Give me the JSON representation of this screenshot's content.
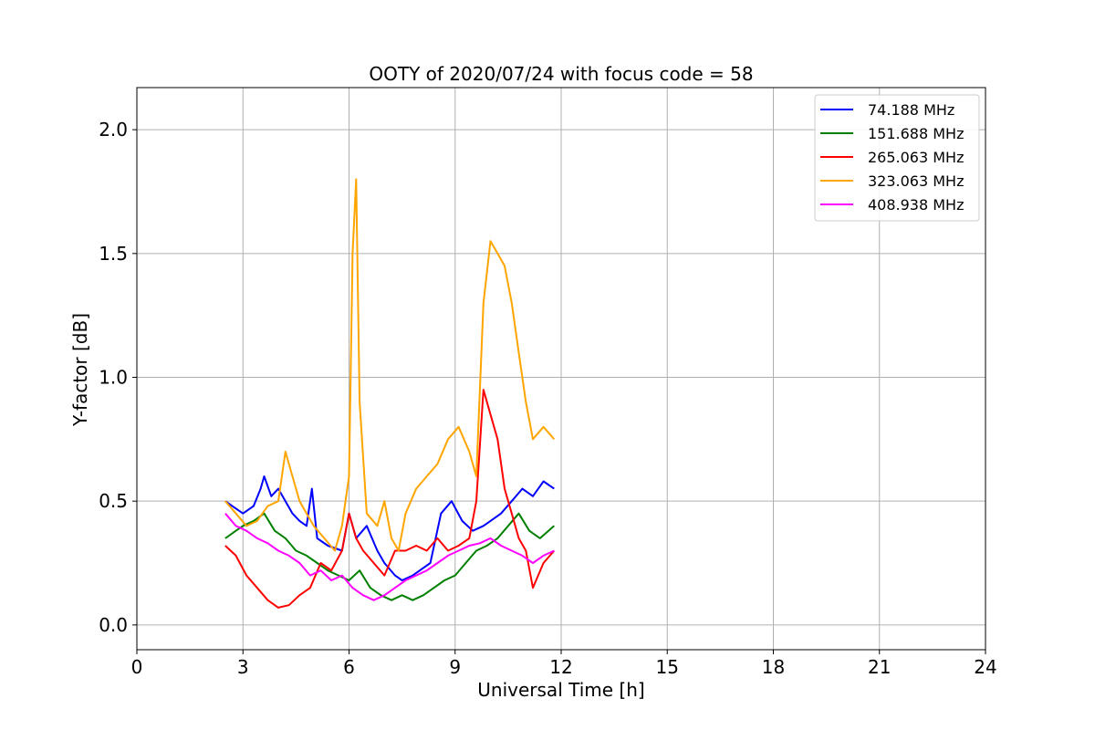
{
  "chart_data": {
    "type": "line",
    "title": "OOTY of 2020/07/24 with focus code = 58",
    "xlabel": "Universal Time [h]",
    "ylabel": "Y-factor [dB]",
    "xlim": [
      0,
      24
    ],
    "ylim": [
      -0.1,
      2.17
    ],
    "xticks": [
      0,
      3,
      6,
      9,
      12,
      15,
      18,
      21,
      24
    ],
    "xtick_labels": [
      "0",
      "3",
      "6",
      "9",
      "12",
      "15",
      "18",
      "21",
      "24"
    ],
    "yticks": [
      0.0,
      0.5,
      1.0,
      1.5,
      2.0
    ],
    "ytick_labels": [
      "0.0",
      "0.5",
      "1.0",
      "1.5",
      "2.0"
    ],
    "grid": true,
    "legend_position": "top-right",
    "series": [
      {
        "name": " 74.188 MHz",
        "color": "#0000ff",
        "x": [
          2.5,
          2.8,
          3.0,
          3.3,
          3.5,
          3.6,
          3.8,
          4.0,
          4.2,
          4.4,
          4.6,
          4.8,
          4.95,
          5.1,
          5.4,
          5.8,
          6.0,
          6.2,
          6.5,
          6.8,
          7.0,
          7.3,
          7.5,
          7.8,
          8.0,
          8.3,
          8.6,
          8.9,
          9.2,
          9.5,
          9.8,
          10.0,
          10.3,
          10.6,
          10.9,
          11.2,
          11.5,
          11.8
        ],
        "y": [
          0.5,
          0.47,
          0.45,
          0.48,
          0.55,
          0.6,
          0.52,
          0.55,
          0.5,
          0.45,
          0.42,
          0.4,
          0.55,
          0.35,
          0.32,
          0.3,
          0.45,
          0.35,
          0.4,
          0.3,
          0.25,
          0.2,
          0.18,
          0.2,
          0.22,
          0.25,
          0.45,
          0.5,
          0.42,
          0.38,
          0.4,
          0.42,
          0.45,
          0.5,
          0.55,
          0.52,
          0.58,
          0.55
        ]
      },
      {
        "name": "151.688 MHz",
        "color": "#008000",
        "x": [
          2.5,
          2.8,
          3.0,
          3.3,
          3.6,
          3.9,
          4.2,
          4.5,
          4.8,
          5.1,
          5.4,
          5.7,
          6.0,
          6.3,
          6.6,
          6.9,
          7.2,
          7.5,
          7.8,
          8.1,
          8.4,
          8.7,
          9.0,
          9.3,
          9.6,
          9.9,
          10.2,
          10.5,
          10.8,
          11.1,
          11.4,
          11.8
        ],
        "y": [
          0.35,
          0.38,
          0.4,
          0.42,
          0.45,
          0.38,
          0.35,
          0.3,
          0.28,
          0.25,
          0.22,
          0.2,
          0.18,
          0.22,
          0.15,
          0.12,
          0.1,
          0.12,
          0.1,
          0.12,
          0.15,
          0.18,
          0.2,
          0.25,
          0.3,
          0.32,
          0.35,
          0.4,
          0.45,
          0.38,
          0.35,
          0.4
        ]
      },
      {
        "name": "265.063 MHz",
        "color": "#ff0000",
        "x": [
          2.5,
          2.8,
          3.1,
          3.4,
          3.7,
          4.0,
          4.3,
          4.6,
          4.9,
          5.2,
          5.5,
          5.8,
          6.0,
          6.2,
          6.4,
          6.7,
          7.0,
          7.3,
          7.6,
          7.9,
          8.2,
          8.5,
          8.8,
          9.1,
          9.4,
          9.6,
          9.8,
          10.0,
          10.2,
          10.4,
          10.6,
          10.8,
          11.0,
          11.2,
          11.5,
          11.8
        ],
        "y": [
          0.32,
          0.28,
          0.2,
          0.15,
          0.1,
          0.07,
          0.08,
          0.12,
          0.15,
          0.25,
          0.22,
          0.3,
          0.45,
          0.35,
          0.3,
          0.25,
          0.2,
          0.3,
          0.3,
          0.32,
          0.3,
          0.35,
          0.3,
          0.32,
          0.35,
          0.5,
          0.95,
          0.85,
          0.75,
          0.55,
          0.45,
          0.35,
          0.3,
          0.15,
          0.25,
          0.3
        ]
      },
      {
        "name": "323.063 MHz",
        "color": "#ffa500",
        "x": [
          2.5,
          2.8,
          3.1,
          3.4,
          3.7,
          4.0,
          4.2,
          4.4,
          4.6,
          4.8,
          5.0,
          5.3,
          5.6,
          5.8,
          6.0,
          6.1,
          6.2,
          6.3,
          6.5,
          6.8,
          7.0,
          7.2,
          7.4,
          7.6,
          7.9,
          8.2,
          8.5,
          8.8,
          9.1,
          9.4,
          9.6,
          9.8,
          10.0,
          10.2,
          10.4,
          10.6,
          10.8,
          11.0,
          11.2,
          11.5,
          11.8
        ],
        "y": [
          0.5,
          0.45,
          0.4,
          0.42,
          0.48,
          0.5,
          0.7,
          0.6,
          0.5,
          0.45,
          0.4,
          0.35,
          0.3,
          0.4,
          0.6,
          1.5,
          1.8,
          0.9,
          0.45,
          0.4,
          0.5,
          0.35,
          0.3,
          0.45,
          0.55,
          0.6,
          0.65,
          0.75,
          0.8,
          0.7,
          0.6,
          1.3,
          1.55,
          1.5,
          1.45,
          1.3,
          1.1,
          0.9,
          0.75,
          0.8,
          0.75
        ]
      },
      {
        "name": "408.938 MHz",
        "color": "#ff00ff",
        "x": [
          2.5,
          2.8,
          3.1,
          3.4,
          3.7,
          4.0,
          4.3,
          4.6,
          4.9,
          5.2,
          5.5,
          5.8,
          6.1,
          6.4,
          6.7,
          7.0,
          7.3,
          7.6,
          7.9,
          8.2,
          8.5,
          8.8,
          9.1,
          9.4,
          9.7,
          10.0,
          10.3,
          10.6,
          10.9,
          11.2,
          11.5,
          11.8
        ],
        "y": [
          0.45,
          0.4,
          0.38,
          0.35,
          0.33,
          0.3,
          0.28,
          0.25,
          0.2,
          0.22,
          0.18,
          0.2,
          0.15,
          0.12,
          0.1,
          0.12,
          0.15,
          0.18,
          0.2,
          0.22,
          0.25,
          0.28,
          0.3,
          0.32,
          0.33,
          0.35,
          0.32,
          0.3,
          0.28,
          0.25,
          0.28,
          0.3
        ]
      }
    ]
  }
}
